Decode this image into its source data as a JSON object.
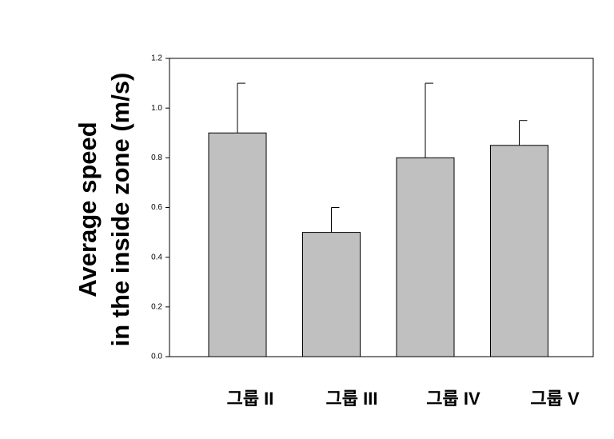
{
  "chart_data": {
    "type": "bar",
    "ylabel": [
      "Average speed",
      "in the inside zone (m/s)"
    ],
    "categories": [
      "그룹 II",
      "그룹 III",
      "그룹 IV",
      "그룹 V"
    ],
    "values": [
      0.9,
      0.5,
      0.8,
      0.85
    ],
    "errors": [
      0.2,
      0.1,
      0.3,
      0.1
    ],
    "color": "#c0c0c0",
    "ylim": [
      0,
      1.2
    ],
    "yticks": [
      {
        "value": 0,
        "label": "0.0"
      },
      0.2,
      0.4,
      0.6,
      0.8,
      {
        "value": 1,
        "label": "1.0"
      },
      1.2
    ]
  }
}
